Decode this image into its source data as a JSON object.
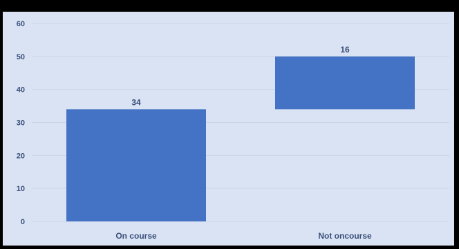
{
  "chart_data": {
    "type": "waterfall",
    "categories": [
      "On course",
      "Not oncourse"
    ],
    "series": [
      {
        "values": [
          34,
          16
        ],
        "bases": [
          0,
          34
        ]
      }
    ],
    "data_labels": [
      "34",
      "16"
    ],
    "ylim": [
      0,
      60
    ],
    "yticks": [
      0,
      10,
      20,
      30,
      40,
      50,
      60
    ],
    "grid": true,
    "title": "",
    "xlabel": "",
    "ylabel": "",
    "bar_color": "#4472c4",
    "background_color": "#dae3f3"
  }
}
